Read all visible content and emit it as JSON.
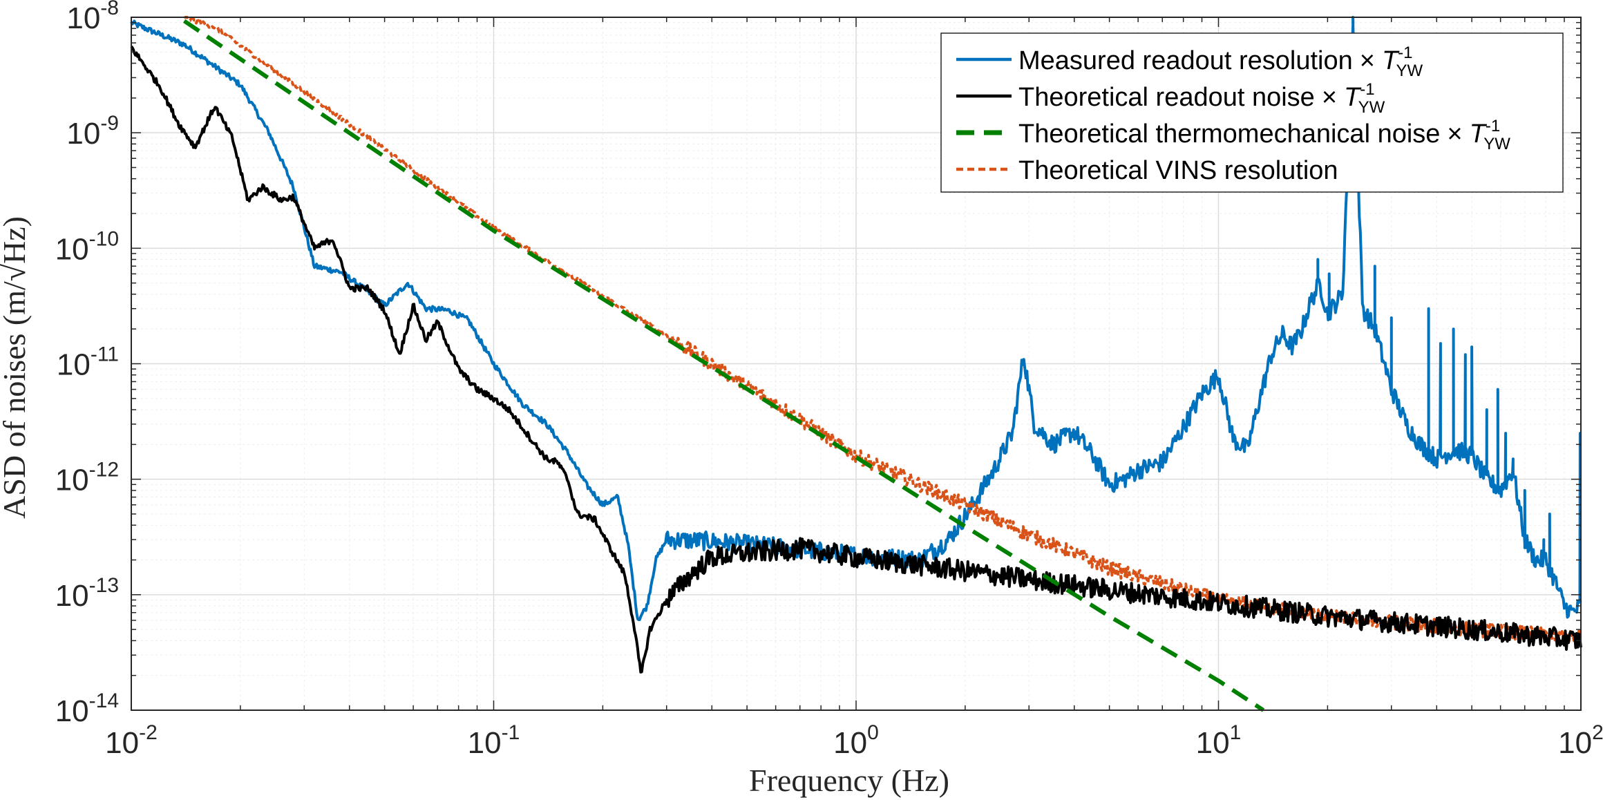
{
  "chart_data": {
    "type": "line",
    "xscale": "log",
    "yscale": "log",
    "xlim": [
      0.01,
      100
    ],
    "ylim": [
      1e-14,
      1e-08
    ],
    "grid": true,
    "minor_grid": true,
    "legend_position": "top-right",
    "xlabel": "Frequency (Hz)",
    "ylabel": "ASD of noises (m/√Hz)",
    "x_tick_labels": [
      {
        "value": 0.01,
        "base": "10",
        "exp": "-2"
      },
      {
        "value": 0.1,
        "base": "10",
        "exp": "-1"
      },
      {
        "value": 1,
        "base": "10",
        "exp": "0"
      },
      {
        "value": 10,
        "base": "10",
        "exp": "1"
      },
      {
        "value": 100,
        "base": "10",
        "exp": "2"
      }
    ],
    "y_tick_labels": [
      {
        "value": 1e-14,
        "base": "10",
        "exp": "-14"
      },
      {
        "value": 1e-13,
        "base": "10",
        "exp": "-13"
      },
      {
        "value": 1e-12,
        "base": "10",
        "exp": "-12"
      },
      {
        "value": 1e-11,
        "base": "10",
        "exp": "-11"
      },
      {
        "value": 1e-10,
        "base": "10",
        "exp": "-10"
      },
      {
        "value": 1e-09,
        "base": "10",
        "exp": "-9"
      },
      {
        "value": 1e-08,
        "base": "10",
        "exp": "-8"
      }
    ],
    "series": [
      {
        "name": "Measured readout resolution",
        "legend_text": "Measured readout resolution",
        "legend_suffix": "×",
        "legend_symbol": "T",
        "legend_sub": "YW",
        "legend_sup": "-1",
        "color": "#0072BD",
        "style": "solid",
        "noise_level": 0.08,
        "points": [
          [
            0.01,
            9e-09
          ],
          [
            0.014,
            5.8e-09
          ],
          [
            0.02,
            2.6e-09
          ],
          [
            0.024,
            1e-09
          ],
          [
            0.028,
            3.4e-10
          ],
          [
            0.032,
            7e-11
          ],
          [
            0.038,
            6.2e-11
          ],
          [
            0.045,
            4.2e-11
          ],
          [
            0.05,
            3.2e-11
          ],
          [
            0.058,
            5e-11
          ],
          [
            0.065,
            3e-11
          ],
          [
            0.075,
            2.9e-11
          ],
          [
            0.085,
            2.4e-11
          ],
          [
            0.1,
            1e-11
          ],
          [
            0.12,
            4.5e-12
          ],
          [
            0.14,
            3e-12
          ],
          [
            0.16,
            1.7e-12
          ],
          [
            0.18,
            9e-13
          ],
          [
            0.2,
            6e-13
          ],
          [
            0.22,
            7e-13
          ],
          [
            0.235,
            2.7e-13
          ],
          [
            0.25,
            6e-14
          ],
          [
            0.265,
            8e-14
          ],
          [
            0.28,
            2e-13
          ],
          [
            0.3,
            3e-13
          ],
          [
            0.4,
            2.9e-13
          ],
          [
            0.6,
            2.6e-13
          ],
          [
            1.0,
            2.2e-13
          ],
          [
            1.5,
            2e-13
          ],
          [
            1.8,
            3e-13
          ],
          [
            2.1,
            6e-13
          ],
          [
            2.4,
            1.2e-12
          ],
          [
            2.7,
            2.5e-12
          ],
          [
            2.9,
            1.2e-11
          ],
          [
            3.1,
            3e-12
          ],
          [
            3.5,
            2e-12
          ],
          [
            4.0,
            2.6e-12
          ],
          [
            4.5,
            1.6e-12
          ],
          [
            5.0,
            9e-13
          ],
          [
            5.5,
            1e-12
          ],
          [
            6.0,
            1.2e-12
          ],
          [
            7.0,
            1.4e-12
          ],
          [
            8.0,
            2.8e-12
          ],
          [
            9.0,
            5.5e-12
          ],
          [
            10,
            8e-12
          ],
          [
            11,
            2.2e-12
          ],
          [
            12,
            1.8e-12
          ],
          [
            13,
            5e-12
          ],
          [
            14,
            1.2e-11
          ],
          [
            15,
            1.8e-11
          ],
          [
            16,
            1.4e-11
          ],
          [
            17,
            2e-11
          ],
          [
            18,
            3.5e-11
          ],
          [
            19,
            5e-11
          ],
          [
            20,
            2.7e-11
          ],
          [
            22,
            4e-11
          ],
          [
            23.5,
            9e-09
          ],
          [
            25,
            3e-11
          ],
          [
            27,
            2e-11
          ],
          [
            30,
            6e-12
          ],
          [
            33,
            3e-12
          ],
          [
            36,
            2e-12
          ],
          [
            40,
            1.5e-12
          ],
          [
            45,
            1.8e-12
          ],
          [
            50,
            1.6e-12
          ],
          [
            55,
            1e-12
          ],
          [
            60,
            8e-13
          ],
          [
            65,
            1.2e-12
          ],
          [
            70,
            3e-13
          ],
          [
            75,
            2e-13
          ],
          [
            80,
            2e-13
          ],
          [
            85,
            1.3e-13
          ],
          [
            90,
            8e-14
          ],
          [
            95,
            7e-14
          ],
          [
            100,
            8e-14
          ]
        ],
        "spikes": [
          [
            18.8,
            8e-11
          ],
          [
            20.2,
            6e-11
          ],
          [
            23.5,
            1e-08
          ],
          [
            27,
            7e-11
          ],
          [
            30,
            2.5e-11
          ],
          [
            38,
            3e-11
          ],
          [
            41,
            1.5e-11
          ],
          [
            44.5,
            2e-11
          ],
          [
            48,
            1.2e-11
          ],
          [
            50,
            1.4e-11
          ],
          [
            55,
            4e-12
          ],
          [
            59,
            6e-12
          ],
          [
            62,
            2.5e-12
          ],
          [
            65,
            1.5e-12
          ],
          [
            70,
            8e-13
          ],
          [
            79,
            3e-13
          ],
          [
            82,
            5e-13
          ],
          [
            99.5,
            2.5e-12
          ]
        ]
      },
      {
        "name": "Theoretical readout noise",
        "legend_text": "Theoretical readout noise",
        "legend_suffix": "×",
        "legend_symbol": "T",
        "legend_sub": "YW",
        "legend_sup": "-1",
        "color": "#000000",
        "style": "solid",
        "noise_level": 0.09,
        "points": [
          [
            0.01,
            5.5e-09
          ],
          [
            0.012,
            2.5e-09
          ],
          [
            0.0135,
            1.2e-09
          ],
          [
            0.015,
            7.5e-10
          ],
          [
            0.017,
            1.7e-09
          ],
          [
            0.019,
            9e-10
          ],
          [
            0.021,
            2.6e-10
          ],
          [
            0.023,
            3.4e-10
          ],
          [
            0.026,
            2.6e-10
          ],
          [
            0.028,
            2.8e-10
          ],
          [
            0.032,
            1e-10
          ],
          [
            0.036,
            1.2e-10
          ],
          [
            0.04,
            4.5e-11
          ],
          [
            0.045,
            4.5e-11
          ],
          [
            0.05,
            2.9e-11
          ],
          [
            0.055,
            1.2e-11
          ],
          [
            0.06,
            3.2e-11
          ],
          [
            0.065,
            1.6e-11
          ],
          [
            0.07,
            2.3e-11
          ],
          [
            0.08,
            9e-12
          ],
          [
            0.09,
            6e-12
          ],
          [
            0.1,
            5e-12
          ],
          [
            0.11,
            4e-12
          ],
          [
            0.12,
            2.8e-12
          ],
          [
            0.13,
            2e-12
          ],
          [
            0.14,
            1.5e-12
          ],
          [
            0.15,
            1.4e-12
          ],
          [
            0.16,
            1e-12
          ],
          [
            0.17,
            5e-13
          ],
          [
            0.19,
            4.5e-13
          ],
          [
            0.21,
            2.5e-13
          ],
          [
            0.23,
            1.5e-13
          ],
          [
            0.245,
            5e-14
          ],
          [
            0.255,
            2e-14
          ],
          [
            0.27,
            5e-14
          ],
          [
            0.3,
            9e-14
          ],
          [
            0.35,
            1.5e-13
          ],
          [
            0.4,
            2.1e-13
          ],
          [
            0.5,
            2.3e-13
          ],
          [
            0.7,
            2.5e-13
          ],
          [
            1,
            2.1e-13
          ],
          [
            1.5,
            1.8e-13
          ],
          [
            2,
            1.6e-13
          ],
          [
            3,
            1.35e-13
          ],
          [
            5,
            1.1e-13
          ],
          [
            10,
            8.5e-14
          ],
          [
            20,
            6.5e-14
          ],
          [
            50,
            5e-14
          ],
          [
            100,
            4e-14
          ]
        ],
        "spikes": []
      },
      {
        "name": "Theoretical thermomechanical noise",
        "legend_text": "Theoretical thermomechanical noise",
        "legend_suffix": "×",
        "legend_symbol": "T",
        "legend_sub": "YW",
        "legend_sup": "-1",
        "color": "#008000",
        "style": "dashed",
        "noise_level": 0,
        "points": [
          [
            0.014,
            9.3e-09
          ],
          [
            0.1,
            1.42e-10
          ],
          [
            1,
            1.55e-12
          ],
          [
            2,
            3.9e-13
          ],
          [
            5,
            6.5e-14
          ],
          [
            10,
            1.8e-14
          ],
          [
            13.3,
            1e-14
          ]
        ],
        "spikes": []
      },
      {
        "name": "Theoretical VINS resolution",
        "legend_text": "Theoretical VINS resolution",
        "legend_suffix": "",
        "legend_symbol": "",
        "legend_sub": "",
        "legend_sup": "",
        "color": "#D95319",
        "style": "dotted",
        "noise_level": 0.06,
        "points": [
          [
            0.014,
            1e-08
          ],
          [
            0.017,
            8.2e-09
          ],
          [
            0.1,
            1.5e-10
          ],
          [
            0.6,
            4.5e-12
          ],
          [
            1,
            1.6e-12
          ],
          [
            1.5,
            9e-13
          ],
          [
            2,
            6e-13
          ],
          [
            3,
            3.3e-13
          ],
          [
            5,
            1.7e-13
          ],
          [
            10,
            9e-14
          ],
          [
            20,
            6.5e-14
          ],
          [
            50,
            5e-14
          ],
          [
            100,
            4.3e-14
          ]
        ],
        "spikes": []
      }
    ]
  }
}
